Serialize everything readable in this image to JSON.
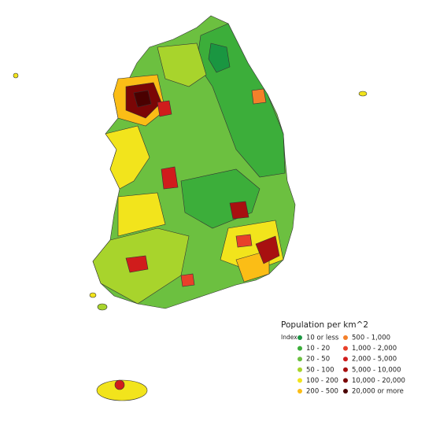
{
  "legend": {
    "title": "Population per km^2",
    "index_label": "Index",
    "items": [
      {
        "label": "10 or less",
        "color": "#1a9641"
      },
      {
        "label": "10 - 20",
        "color": "#3cae3a"
      },
      {
        "label": "20 - 50",
        "color": "#6cc040"
      },
      {
        "label": "50 - 100",
        "color": "#a8d42c"
      },
      {
        "label": "100 - 200",
        "color": "#f2e41c"
      },
      {
        "label": "200 - 500",
        "color": "#fbbd16"
      },
      {
        "label": "500 - 1,000",
        "color": "#f4802a"
      },
      {
        "label": "1,000 - 2,000",
        "color": "#e8402a"
      },
      {
        "label": "2,000 - 5,000",
        "color": "#d01c1c"
      },
      {
        "label": "5,000 - 10,000",
        "color": "#a81010"
      },
      {
        "label": "10,000 - 20,000",
        "color": "#7a0606"
      },
      {
        "label": "20,000 or more",
        "color": "#4a0000"
      }
    ]
  }
}
